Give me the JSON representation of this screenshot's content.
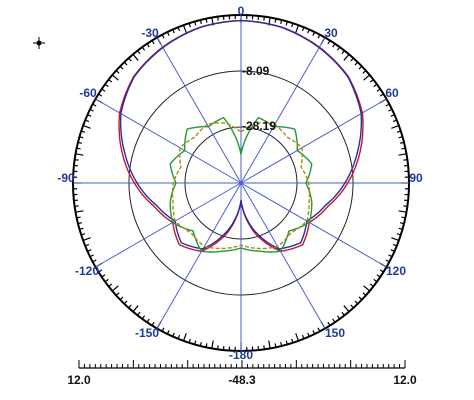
{
  "chart_data": {
    "type": "line",
    "subtype": "polar-radiation-pattern",
    "angle_unit": "deg",
    "angle_zero": "top",
    "angle_direction": "clockwise",
    "r_range": [
      -48.3,
      12.0
    ],
    "grid": true,
    "angle_tick_labels": [
      "0",
      "30",
      "60",
      "90",
      "120",
      "150",
      "-180",
      "-150",
      "-120",
      "-90",
      "-60",
      "-30"
    ],
    "ring_labels": [
      "-8.09",
      "-28.19"
    ],
    "scale_bar": {
      "left": "12.0",
      "center": "-48.3",
      "right": "12.0"
    },
    "series": [
      {
        "color": "#c0182c",
        "angles": [
          0,
          15,
          30,
          45,
          60,
          75,
          90,
          105,
          120,
          135,
          150,
          165,
          180,
          195,
          210,
          225,
          240,
          255,
          270,
          285,
          300,
          315,
          330,
          345,
          360
        ],
        "values": [
          10.0,
          9.5,
          8.0,
          6.0,
          2.0,
          -4.0,
          -10.0,
          -16.0,
          -20.0,
          -17.0,
          -20.0,
          -30.0,
          -42.0,
          -30.0,
          -20.0,
          -17.0,
          -20.0,
          -16.0,
          -10.0,
          -4.0,
          2.0,
          6.0,
          8.0,
          9.5,
          10.0
        ]
      },
      {
        "color": "#2a2d9e",
        "angles": [
          0,
          15,
          30,
          45,
          60,
          75,
          90,
          105,
          120,
          135,
          150,
          165,
          180,
          195,
          210,
          225,
          240,
          255,
          270,
          285,
          300,
          315,
          330,
          345,
          360
        ],
        "values": [
          10.0,
          9.4,
          7.8,
          5.8,
          1.5,
          -5.0,
          -11.0,
          -17.0,
          -21.0,
          -18.0,
          -21.0,
          -31.0,
          -42.0,
          -31.0,
          -21.0,
          -18.0,
          -21.0,
          -17.0,
          -11.0,
          -5.0,
          1.5,
          5.8,
          7.8,
          9.4,
          10.0
        ]
      },
      {
        "color": "#1f9a3c",
        "angles": [
          0,
          15,
          30,
          45,
          60,
          75,
          90,
          105,
          120,
          135,
          150,
          165,
          180,
          195,
          210,
          225,
          240,
          255,
          270,
          285,
          300,
          315,
          330,
          345,
          360
        ],
        "values": [
          -38.0,
          -24.0,
          -25.0,
          -21.0,
          -25.0,
          -22.0,
          -25.0,
          -22.0,
          -20.0,
          -24.0,
          -20.0,
          -23.0,
          -25.0,
          -23.0,
          -20.0,
          -24.0,
          -20.0,
          -22.0,
          -25.0,
          -22.0,
          -25.0,
          -21.0,
          -25.0,
          -24.0,
          -38.0
        ]
      },
      {
        "color": "#b8860b",
        "dashed": true,
        "angles": [
          0,
          15,
          30,
          45,
          60,
          75,
          90,
          105,
          120,
          135,
          150,
          165,
          180,
          195,
          210,
          225,
          240,
          255,
          270,
          285,
          300,
          315,
          330,
          345,
          360
        ],
        "values": [
          -30.0,
          -26.0,
          -24.0,
          -25.0,
          -23.0,
          -26.0,
          -24.0,
          -23.0,
          -21.0,
          -23.0,
          -22.0,
          -24.0,
          -26.0,
          -24.0,
          -22.0,
          -23.0,
          -21.0,
          -23.0,
          -24.0,
          -26.0,
          -23.0,
          -25.0,
          -24.0,
          -26.0,
          -30.0
        ]
      }
    ]
  },
  "colors": {
    "angle_label": "#1f3a99",
    "spoke": "#4a5fd6",
    "ring": "#222222",
    "outer": "#000000"
  },
  "icons": {
    "marker": "crosshair-dot-icon"
  }
}
